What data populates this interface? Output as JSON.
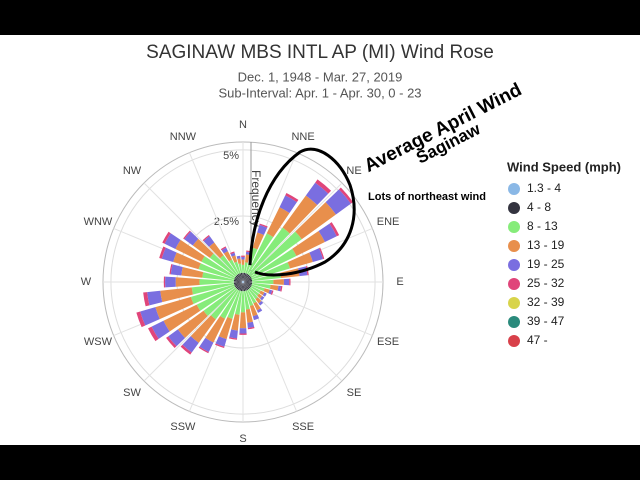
{
  "chart_data": {
    "type": "windrose",
    "title": "SAGINAW MBS INTL AP (MI) Wind Rose",
    "subtitle": [
      "Dec. 1, 1948 - Mar. 27, 2019",
      "Sub-Interval: Apr. 1 - Apr. 30, 0 - 23"
    ],
    "radial_axis_label": "Frequency",
    "legend_title": "Wind Speed (mph)",
    "annotations": [
      "Average April Wind",
      "Saginaw",
      "Lots of northeast wind"
    ],
    "theta": [
      0,
      10,
      20,
      30,
      40,
      50,
      60,
      70,
      80,
      90,
      100,
      110,
      120,
      130,
      140,
      150,
      160,
      170,
      180,
      190,
      200,
      210,
      220,
      230,
      240,
      250,
      260,
      270,
      280,
      290,
      300,
      310,
      320,
      330,
      340,
      350
    ],
    "thetaticks": [
      {
        "value": 0,
        "label": "N"
      },
      {
        "value": 22.5,
        "label": "NNE"
      },
      {
        "value": 45,
        "label": "NE"
      },
      {
        "value": 67.5,
        "label": "ENE"
      },
      {
        "value": 90,
        "label": "E"
      },
      {
        "value": 112.5,
        "label": "ESE"
      },
      {
        "value": 135,
        "label": "SE"
      },
      {
        "value": 157.5,
        "label": "SSE"
      },
      {
        "value": 180,
        "label": "S"
      },
      {
        "value": 202.5,
        "label": "SSW"
      },
      {
        "value": 225,
        "label": "SW"
      },
      {
        "value": 247.5,
        "label": "WSW"
      },
      {
        "value": 270,
        "label": "W"
      },
      {
        "value": 292.5,
        "label": "WNW"
      },
      {
        "value": 315,
        "label": "NW"
      },
      {
        "value": 337.5,
        "label": "NNW"
      }
    ],
    "rlim": [
      0,
      5.3
    ],
    "rticks": [
      {
        "value": 2.5,
        "label": "2.5%"
      },
      {
        "value": 5,
        "label": "5%"
      }
    ],
    "series": [
      {
        "name": "1.3 - 4",
        "color": "#8ab8e6",
        "values": [
          0.05,
          0.05,
          0.05,
          0.05,
          0.05,
          0.05,
          0.05,
          0.05,
          0.05,
          0.05,
          0.05,
          0.05,
          0.05,
          0.05,
          0.05,
          0.05,
          0.05,
          0.05,
          0.05,
          0.05,
          0.05,
          0.05,
          0.05,
          0.05,
          0.05,
          0.05,
          0.05,
          0.05,
          0.05,
          0.05,
          0.05,
          0.05,
          0.05,
          0.05,
          0.05,
          0.05
        ]
      },
      {
        "name": "4 - 8",
        "color": "#33333f",
        "values": [
          0.3,
          0.3,
          0.3,
          0.3,
          0.3,
          0.3,
          0.3,
          0.3,
          0.3,
          0.3,
          0.3,
          0.3,
          0.3,
          0.3,
          0.3,
          0.3,
          0.3,
          0.3,
          0.3,
          0.3,
          0.3,
          0.3,
          0.3,
          0.3,
          0.3,
          0.3,
          0.3,
          0.3,
          0.3,
          0.3,
          0.3,
          0.3,
          0.3,
          0.3,
          0.3,
          0.3
        ]
      },
      {
        "name": "8 - 13",
        "color": "#86ec7a",
        "values": [
          0.3,
          0.4,
          1.0,
          1.7,
          2.2,
          2.4,
          1.9,
          1.5,
          1.1,
          0.8,
          0.7,
          0.5,
          0.4,
          0.4,
          0.45,
          0.55,
          0.6,
          0.7,
          0.8,
          0.9,
          1.1,
          1.2,
          1.4,
          1.5,
          1.6,
          1.7,
          1.6,
          1.3,
          1.2,
          1.4,
          1.4,
          1.2,
          0.9,
          0.6,
          0.45,
          0.35
        ]
      },
      {
        "name": "13 - 19",
        "color": "#e88f4c",
        "values": [
          0.2,
          0.3,
          0.6,
          1.1,
          1.5,
          1.6,
          1.2,
          0.9,
          0.7,
          0.4,
          0.3,
          0.2,
          0.15,
          0.15,
          0.2,
          0.3,
          0.4,
          0.5,
          0.6,
          0.6,
          0.8,
          1.0,
          1.1,
          1.2,
          1.4,
          1.4,
          1.2,
          0.9,
          0.8,
          1.0,
          1.1,
          0.8,
          0.6,
          0.35,
          0.25,
          0.2
        ]
      },
      {
        "name": "19 - 25",
        "color": "#7a6ee0",
        "values": [
          0.1,
          0.1,
          0.3,
          0.5,
          0.6,
          0.7,
          0.5,
          0.4,
          0.3,
          0.2,
          0.1,
          0.1,
          0.1,
          0.1,
          0.1,
          0.1,
          0.15,
          0.2,
          0.2,
          0.3,
          0.3,
          0.4,
          0.45,
          0.45,
          0.5,
          0.6,
          0.5,
          0.4,
          0.4,
          0.45,
          0.45,
          0.4,
          0.3,
          0.15,
          0.1,
          0.1
        ]
      },
      {
        "name": "25 - 32",
        "color": "#e0457a",
        "values": [
          0.05,
          0.05,
          0.05,
          0.1,
          0.15,
          0.1,
          0.1,
          0.05,
          0.05,
          0.05,
          0.05,
          0.05,
          0,
          0,
          0,
          0,
          0,
          0.05,
          0.05,
          0.05,
          0.05,
          0.05,
          0.1,
          0.1,
          0.15,
          0.15,
          0.15,
          0.05,
          0.05,
          0.1,
          0.1,
          0.05,
          0.05,
          0.05,
          0.05,
          0
        ]
      },
      {
        "name": "32 - 39",
        "color": "#d8d44a",
        "values": [
          0,
          0,
          0,
          0,
          0,
          0,
          0,
          0,
          0,
          0,
          0,
          0,
          0,
          0,
          0,
          0,
          0,
          0,
          0,
          0,
          0,
          0,
          0,
          0,
          0,
          0,
          0,
          0,
          0,
          0,
          0,
          0,
          0,
          0,
          0,
          0
        ]
      },
      {
        "name": "39 - 47",
        "color": "#2a8a7c",
        "values": [
          0,
          0,
          0,
          0,
          0,
          0,
          0,
          0,
          0,
          0,
          0,
          0,
          0,
          0,
          0,
          0,
          0,
          0,
          0,
          0,
          0,
          0,
          0,
          0,
          0,
          0,
          0,
          0,
          0,
          0,
          0,
          0,
          0,
          0,
          0,
          0
        ]
      },
      {
        "name": "47 -",
        "color": "#d8404a",
        "values": [
          0,
          0,
          0,
          0,
          0,
          0,
          0,
          0,
          0,
          0,
          0,
          0,
          0,
          0,
          0,
          0,
          0,
          0,
          0,
          0,
          0,
          0,
          0,
          0,
          0,
          0,
          0,
          0,
          0,
          0,
          0,
          0,
          0,
          0,
          0,
          0
        ]
      }
    ]
  }
}
